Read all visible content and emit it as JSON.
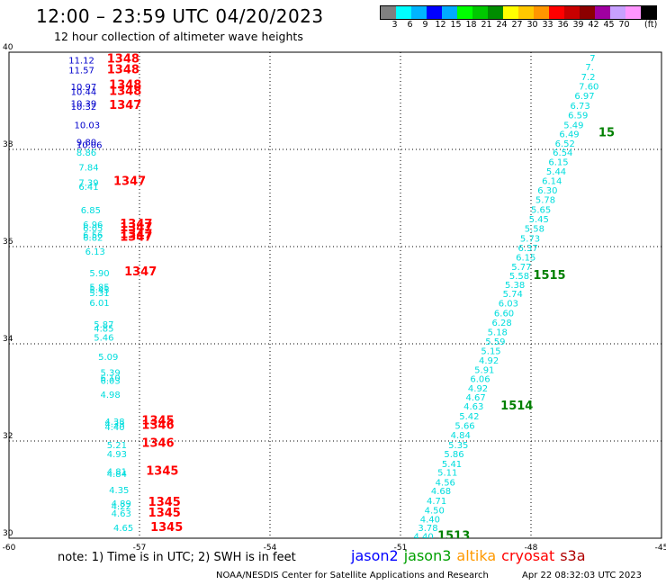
{
  "header": {
    "title": "12:00 – 23:59 UTC 04/20/2023",
    "subtitle": "12 hour collection of altimeter wave heights"
  },
  "color_legend": {
    "colors": [
      "#808080",
      "#00ffff",
      "#00b4ff",
      "#0000ff",
      "#00aaff",
      "#00ff00",
      "#00c800",
      "#008c00",
      "#ffff00",
      "#ffc800",
      "#ff9600",
      "#ff0000",
      "#c80000",
      "#8c0000",
      "#a000a0",
      "#c8a0ff",
      "#ff96ff",
      "#000000"
    ],
    "labels": [
      "3",
      "6",
      "9",
      "12",
      "15",
      "18",
      "21",
      "24",
      "27",
      "30",
      "33",
      "36",
      "39",
      "42",
      "45",
      "70"
    ],
    "unit": "(ft)"
  },
  "note": "note:  1) Time is in UTC;  2) SWH is in feet",
  "satellites": [
    {
      "name": "jason2",
      "color": "#0000ff"
    },
    {
      "name": "jason3",
      "color": "#00a000"
    },
    {
      "name": "altika",
      "color": "#ff9900"
    },
    {
      "name": "cryosat",
      "color": "#ff0000"
    },
    {
      "name": "s3a",
      "color": "#b00000"
    }
  ],
  "footer": {
    "credit": "NOAA/NESDIS Center for Satellite Applications and Research",
    "timestamp": "Apr 22 08:32:03 UTC 2023"
  },
  "chart_data": {
    "type": "scatter",
    "xlim": [
      -60,
      -45
    ],
    "ylim": [
      30,
      40
    ],
    "x_ticks": [
      "-60",
      "-57",
      "-54",
      "-51",
      "-48",
      "-45"
    ],
    "y_ticks": [
      "30",
      "32",
      "34",
      "36",
      "38",
      "40"
    ],
    "grid": true,
    "colors": {
      "jason2": "#0000cc",
      "cyan": "#00dddd",
      "cryosat": "#ff0000",
      "jason3": "#008000"
    },
    "points": [
      {
        "x": -58.63,
        "y": 39.84,
        "text": "11.12",
        "color": "jason2"
      },
      {
        "x": -58.63,
        "y": 39.64,
        "text": "11.57",
        "color": "jason2"
      },
      {
        "x": -58.58,
        "y": 39.3,
        "text": "10.97",
        "color": "jason2"
      },
      {
        "x": -58.58,
        "y": 39.19,
        "text": "10.44",
        "color": "jason2"
      },
      {
        "x": -58.58,
        "y": 38.95,
        "text": "10.39",
        "color": "jason2"
      },
      {
        "x": -58.58,
        "y": 38.89,
        "text": "10.32",
        "color": "jason2"
      },
      {
        "x": -58.5,
        "y": 38.51,
        "text": "10.03",
        "color": "jason2"
      },
      {
        "x": -58.45,
        "y": 38.16,
        "text": "9.80",
        "color": "jason2"
      },
      {
        "x": -58.45,
        "y": 38.1,
        "text": "10.06",
        "color": "jason2"
      },
      {
        "x": -58.45,
        "y": 37.94,
        "text": "8.86",
        "color": "cyan"
      },
      {
        "x": -58.4,
        "y": 37.64,
        "text": "7.84",
        "color": "cyan"
      },
      {
        "x": -58.4,
        "y": 37.32,
        "text": "7.39",
        "color": "cyan"
      },
      {
        "x": -58.4,
        "y": 37.24,
        "text": "6.41",
        "color": "cyan"
      },
      {
        "x": -58.35,
        "y": 36.76,
        "text": "6.85",
        "color": "cyan"
      },
      {
        "x": -58.3,
        "y": 36.46,
        "text": "6.96",
        "color": "cyan"
      },
      {
        "x": -58.3,
        "y": 36.39,
        "text": "6.05",
        "color": "cyan"
      },
      {
        "x": -58.3,
        "y": 36.25,
        "text": "6.56",
        "color": "cyan"
      },
      {
        "x": -58.3,
        "y": 36.19,
        "text": "6.82",
        "color": "cyan"
      },
      {
        "x": -58.25,
        "y": 35.91,
        "text": "6.13",
        "color": "cyan"
      },
      {
        "x": -58.15,
        "y": 35.46,
        "text": "5.90",
        "color": "cyan"
      },
      {
        "x": -58.15,
        "y": 35.18,
        "text": "5.85",
        "color": "cyan"
      },
      {
        "x": -58.15,
        "y": 35.12,
        "text": "5.45",
        "color": "cyan"
      },
      {
        "x": -58.15,
        "y": 35.06,
        "text": "5.31",
        "color": "cyan"
      },
      {
        "x": -58.15,
        "y": 34.85,
        "text": "6.01",
        "color": "cyan"
      },
      {
        "x": -58.05,
        "y": 34.41,
        "text": "5.87",
        "color": "cyan"
      },
      {
        "x": -58.05,
        "y": 34.32,
        "text": "4.85",
        "color": "cyan"
      },
      {
        "x": -58.05,
        "y": 34.14,
        "text": "5.46",
        "color": "cyan"
      },
      {
        "x": -57.95,
        "y": 33.74,
        "text": "5.09",
        "color": "cyan"
      },
      {
        "x": -57.9,
        "y": 33.42,
        "text": "5.39",
        "color": "cyan"
      },
      {
        "x": -57.9,
        "y": 33.31,
        "text": "6.10",
        "color": "cyan"
      },
      {
        "x": -57.9,
        "y": 33.25,
        "text": "6.03",
        "color": "cyan"
      },
      {
        "x": -57.9,
        "y": 32.96,
        "text": "4.98",
        "color": "cyan"
      },
      {
        "x": -57.8,
        "y": 32.41,
        "text": "4.38",
        "color": "cyan"
      },
      {
        "x": -57.8,
        "y": 32.36,
        "text": "4.33",
        "color": "cyan"
      },
      {
        "x": -57.8,
        "y": 32.3,
        "text": "4.40",
        "color": "cyan"
      },
      {
        "x": -57.75,
        "y": 31.93,
        "text": "5.21",
        "color": "cyan"
      },
      {
        "x": -57.75,
        "y": 31.74,
        "text": "4.93",
        "color": "cyan"
      },
      {
        "x": -57.75,
        "y": 31.38,
        "text": "4.81",
        "color": "cyan"
      },
      {
        "x": -57.75,
        "y": 31.33,
        "text": "4.84",
        "color": "cyan"
      },
      {
        "x": -57.7,
        "y": 31.0,
        "text": "4.35",
        "color": "cyan"
      },
      {
        "x": -57.65,
        "y": 30.72,
        "text": "4.89",
        "color": "cyan"
      },
      {
        "x": -57.65,
        "y": 30.67,
        "text": "4.22",
        "color": "cyan"
      },
      {
        "x": -57.65,
        "y": 30.52,
        "text": "4.63",
        "color": "cyan"
      },
      {
        "x": -57.6,
        "y": 30.22,
        "text": "4.65",
        "color": "cyan"
      },
      {
        "x": -57.75,
        "y": 39.86,
        "text": "1348",
        "color": "cryosat"
      },
      {
        "x": -57.75,
        "y": 39.64,
        "text": "1348",
        "color": "cryosat"
      },
      {
        "x": -57.7,
        "y": 39.32,
        "text": "1348",
        "color": "cryosat"
      },
      {
        "x": -57.7,
        "y": 39.19,
        "text": "1348",
        "color": "cryosat"
      },
      {
        "x": -57.7,
        "y": 38.91,
        "text": "1347",
        "color": "cryosat"
      },
      {
        "x": -57.6,
        "y": 37.34,
        "text": "1347",
        "color": "cryosat"
      },
      {
        "x": -57.45,
        "y": 36.46,
        "text": "1347",
        "color": "cryosat"
      },
      {
        "x": -57.45,
        "y": 36.39,
        "text": "1347",
        "color": "cryosat"
      },
      {
        "x": -57.45,
        "y": 36.25,
        "text": "1347",
        "color": "cryosat"
      },
      {
        "x": -57.45,
        "y": 36.19,
        "text": "1347",
        "color": "cryosat"
      },
      {
        "x": -57.35,
        "y": 35.48,
        "text": "1347",
        "color": "cryosat"
      },
      {
        "x": -56.95,
        "y": 32.42,
        "text": "1345",
        "color": "cryosat"
      },
      {
        "x": -56.95,
        "y": 32.32,
        "text": "1346",
        "color": "cryosat"
      },
      {
        "x": -56.95,
        "y": 31.95,
        "text": "1346",
        "color": "cryosat"
      },
      {
        "x": -56.85,
        "y": 31.38,
        "text": "1345",
        "color": "cryosat"
      },
      {
        "x": -56.8,
        "y": 30.74,
        "text": "1345",
        "color": "cryosat"
      },
      {
        "x": -56.8,
        "y": 30.52,
        "text": "1345",
        "color": "cryosat"
      },
      {
        "x": -56.75,
        "y": 30.22,
        "text": "1345",
        "color": "cryosat"
      },
      {
        "x": -50.7,
        "y": 30.05,
        "text": "4.40",
        "color": "cyan"
      },
      {
        "x": -50.6,
        "y": 30.22,
        "text": "3.78",
        "color": "cyan"
      },
      {
        "x": -50.55,
        "y": 30.4,
        "text": "4.40",
        "color": "cyan"
      },
      {
        "x": -50.45,
        "y": 30.58,
        "text": "4.50",
        "color": "cyan"
      },
      {
        "x": -50.4,
        "y": 30.78,
        "text": "4.71",
        "color": "cyan"
      },
      {
        "x": -50.3,
        "y": 30.98,
        "text": "4.68",
        "color": "cyan"
      },
      {
        "x": -50.2,
        "y": 31.16,
        "text": "4.56",
        "color": "cyan"
      },
      {
        "x": -50.15,
        "y": 31.36,
        "text": "5.11",
        "color": "cyan"
      },
      {
        "x": -50.05,
        "y": 31.54,
        "text": "5.41",
        "color": "cyan"
      },
      {
        "x": -50.0,
        "y": 31.74,
        "text": "5.86",
        "color": "cyan"
      },
      {
        "x": -49.9,
        "y": 31.93,
        "text": "5.35",
        "color": "cyan"
      },
      {
        "x": -49.85,
        "y": 32.13,
        "text": "4.84",
        "color": "cyan"
      },
      {
        "x": -49.75,
        "y": 32.32,
        "text": "5.66",
        "color": "cyan"
      },
      {
        "x": -49.65,
        "y": 32.52,
        "text": "5.42",
        "color": "cyan"
      },
      {
        "x": -49.55,
        "y": 32.72,
        "text": "4.63",
        "color": "cyan"
      },
      {
        "x": -49.5,
        "y": 32.91,
        "text": "4.67",
        "color": "cyan"
      },
      {
        "x": -49.45,
        "y": 33.09,
        "text": "4.92",
        "color": "cyan"
      },
      {
        "x": -49.4,
        "y": 33.29,
        "text": "6.06",
        "color": "cyan"
      },
      {
        "x": -49.3,
        "y": 33.47,
        "text": "5.91",
        "color": "cyan"
      },
      {
        "x": -49.2,
        "y": 33.67,
        "text": "4.92",
        "color": "cyan"
      },
      {
        "x": -49.15,
        "y": 33.86,
        "text": "5.15",
        "color": "cyan"
      },
      {
        "x": -49.05,
        "y": 34.06,
        "text": "5.59",
        "color": "cyan"
      },
      {
        "x": -49.0,
        "y": 34.25,
        "text": "5.18",
        "color": "cyan"
      },
      {
        "x": -48.9,
        "y": 34.44,
        "text": "6.28",
        "color": "cyan"
      },
      {
        "x": -48.85,
        "y": 34.64,
        "text": "6.60",
        "color": "cyan"
      },
      {
        "x": -48.75,
        "y": 34.84,
        "text": "6.03",
        "color": "cyan"
      },
      {
        "x": -48.65,
        "y": 35.04,
        "text": "5.74",
        "color": "cyan"
      },
      {
        "x": -48.6,
        "y": 35.22,
        "text": "5.38",
        "color": "cyan"
      },
      {
        "x": -48.5,
        "y": 35.41,
        "text": "5.58",
        "color": "cyan"
      },
      {
        "x": -48.45,
        "y": 35.59,
        "text": "5.77",
        "color": "cyan"
      },
      {
        "x": -48.35,
        "y": 35.79,
        "text": "6.15",
        "color": "cyan"
      },
      {
        "x": -48.3,
        "y": 35.98,
        "text": "6.37",
        "color": "cyan"
      },
      {
        "x": -48.25,
        "y": 36.18,
        "text": "5.73",
        "color": "cyan"
      },
      {
        "x": -48.15,
        "y": 36.38,
        "text": "5.58",
        "color": "cyan"
      },
      {
        "x": -48.05,
        "y": 36.57,
        "text": "5.45",
        "color": "cyan"
      },
      {
        "x": -48.0,
        "y": 36.77,
        "text": "5.65",
        "color": "cyan"
      },
      {
        "x": -47.9,
        "y": 36.97,
        "text": "5.78",
        "color": "cyan"
      },
      {
        "x": -47.85,
        "y": 37.17,
        "text": "6.30",
        "color": "cyan"
      },
      {
        "x": -47.75,
        "y": 37.36,
        "text": "6.14",
        "color": "cyan"
      },
      {
        "x": -47.65,
        "y": 37.56,
        "text": "5.44",
        "color": "cyan"
      },
      {
        "x": -47.6,
        "y": 37.75,
        "text": "6.15",
        "color": "cyan"
      },
      {
        "x": -47.5,
        "y": 37.94,
        "text": "6.54",
        "color": "cyan"
      },
      {
        "x": -47.45,
        "y": 38.13,
        "text": "6.52",
        "color": "cyan"
      },
      {
        "x": -47.35,
        "y": 38.32,
        "text": "6.49",
        "color": "cyan"
      },
      {
        "x": -47.25,
        "y": 38.51,
        "text": "5.49",
        "color": "cyan"
      },
      {
        "x": -47.15,
        "y": 38.71,
        "text": "6.59",
        "color": "cyan"
      },
      {
        "x": -47.1,
        "y": 38.91,
        "text": "6.73",
        "color": "cyan"
      },
      {
        "x": -47.0,
        "y": 39.11,
        "text": "6.97",
        "color": "cyan"
      },
      {
        "x": -46.9,
        "y": 39.31,
        "text": "7.60",
        "color": "cyan"
      },
      {
        "x": -46.85,
        "y": 39.5,
        "text": "7.2",
        "color": "cyan"
      },
      {
        "x": -46.75,
        "y": 39.7,
        "text": "7.",
        "color": "cyan"
      },
      {
        "x": -46.65,
        "y": 39.89,
        "text": "7",
        "color": "cyan"
      },
      {
        "x": -50.15,
        "y": 30.05,
        "text": "1513",
        "color": "jason3"
      },
      {
        "x": -48.7,
        "y": 32.72,
        "text": "1514",
        "color": "jason3"
      },
      {
        "x": -47.95,
        "y": 35.41,
        "text": "1515",
        "color": "jason3"
      },
      {
        "x": -46.45,
        "y": 38.34,
        "text": "15",
        "color": "jason3"
      }
    ]
  }
}
